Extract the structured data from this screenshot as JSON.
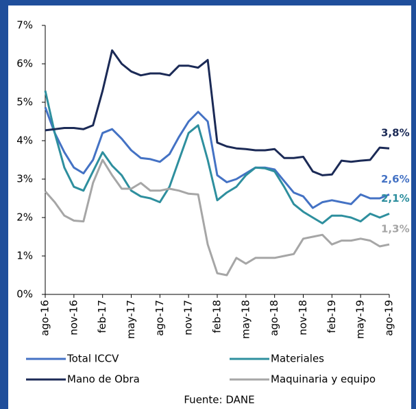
{
  "chart_data": {
    "type": "line",
    "categories": [
      "ago-16",
      null,
      null,
      "nov-16",
      null,
      null,
      "feb-17",
      null,
      null,
      "may-17",
      null,
      null,
      "ago-17",
      null,
      null,
      "nov-17",
      null,
      null,
      "feb-18",
      null,
      null,
      "may-18",
      null,
      null,
      "ago-18",
      null,
      null,
      "nov-18",
      null,
      null,
      "feb-19",
      null,
      null,
      "may-19",
      null,
      null,
      "ago-19"
    ],
    "ylim": [
      0,
      7
    ],
    "yticks": [
      {
        "value": 0,
        "label": "0%"
      },
      {
        "value": 1,
        "label": "1%"
      },
      {
        "value": 2,
        "label": "2%"
      },
      {
        "value": 3,
        "label": "3%"
      },
      {
        "value": 4,
        "label": "4%"
      },
      {
        "value": 5,
        "label": "5%"
      },
      {
        "value": 6,
        "label": "6%"
      },
      {
        "value": 7,
        "label": "7%"
      }
    ],
    "grid": false,
    "series": [
      {
        "name": "Total ICCV",
        "color": "#4472c4",
        "values": [
          4.87,
          4.2,
          3.7,
          3.3,
          3.15,
          3.5,
          4.2,
          4.3,
          4.05,
          3.75,
          3.55,
          3.52,
          3.45,
          3.65,
          4.1,
          4.5,
          4.75,
          4.5,
          3.1,
          2.92,
          3.0,
          3.15,
          3.3,
          3.3,
          3.25,
          2.95,
          2.65,
          2.55,
          2.25,
          2.4,
          2.45,
          2.4,
          2.35,
          2.6,
          2.5,
          2.5,
          2.6
        ],
        "value_labels": [
          null,
          null,
          null,
          null,
          null,
          null,
          null,
          null,
          null,
          null,
          null,
          null,
          null,
          null,
          null,
          null,
          null,
          null,
          null,
          null,
          null,
          null,
          null,
          null,
          null,
          null,
          null,
          null,
          null,
          null,
          null,
          null,
          null,
          null,
          null,
          null,
          "2,6%"
        ]
      },
      {
        "name": "Materiales",
        "color": "#2e8f9e",
        "values": [
          5.3,
          4.2,
          3.3,
          2.8,
          2.7,
          3.2,
          3.7,
          3.35,
          3.1,
          2.7,
          2.55,
          2.5,
          2.4,
          2.8,
          3.5,
          4.2,
          4.4,
          3.5,
          2.45,
          2.65,
          2.8,
          3.1,
          3.3,
          3.28,
          3.2,
          2.8,
          2.35,
          2.15,
          2.0,
          1.85,
          2.05,
          2.05,
          2.0,
          1.9,
          2.1,
          2.0,
          2.1
        ],
        "value_labels": [
          null,
          null,
          null,
          null,
          null,
          null,
          null,
          null,
          null,
          null,
          null,
          null,
          null,
          null,
          null,
          null,
          null,
          null,
          null,
          null,
          null,
          null,
          null,
          null,
          null,
          null,
          null,
          null,
          null,
          null,
          null,
          null,
          null,
          null,
          null,
          null,
          "2,1%"
        ]
      },
      {
        "name": "Mano de Obra",
        "color": "#1b2a56",
        "values": [
          4.27,
          4.3,
          4.33,
          4.33,
          4.3,
          4.4,
          5.3,
          6.35,
          6.0,
          5.8,
          5.7,
          5.75,
          5.75,
          5.7,
          5.95,
          5.95,
          5.9,
          6.1,
          3.95,
          3.85,
          3.8,
          3.78,
          3.75,
          3.75,
          3.78,
          3.55,
          3.55,
          3.58,
          3.2,
          3.1,
          3.12,
          3.48,
          3.45,
          3.48,
          3.5,
          3.82,
          3.8
        ],
        "value_labels": [
          null,
          null,
          null,
          null,
          null,
          null,
          null,
          null,
          null,
          null,
          null,
          null,
          null,
          null,
          null,
          null,
          null,
          null,
          null,
          null,
          null,
          null,
          null,
          null,
          null,
          null,
          null,
          null,
          null,
          null,
          null,
          null,
          null,
          null,
          null,
          null,
          "3,8%"
        ]
      },
      {
        "name": "Maquinaria y equipo",
        "color": "#a6a6a6",
        "values": [
          2.68,
          2.4,
          2.05,
          1.92,
          1.9,
          2.9,
          3.5,
          3.1,
          2.75,
          2.75,
          2.9,
          2.7,
          2.7,
          2.75,
          2.7,
          2.62,
          2.6,
          1.3,
          0.55,
          0.5,
          0.95,
          0.8,
          0.95,
          0.95,
          0.95,
          1.0,
          1.05,
          1.45,
          1.5,
          1.55,
          1.3,
          1.4,
          1.4,
          1.45,
          1.4,
          1.25,
          1.3
        ],
        "value_labels": [
          null,
          null,
          null,
          null,
          null,
          null,
          null,
          null,
          null,
          null,
          null,
          null,
          null,
          null,
          null,
          null,
          null,
          null,
          null,
          null,
          null,
          null,
          null,
          null,
          null,
          null,
          null,
          null,
          null,
          null,
          null,
          null,
          null,
          null,
          null,
          null,
          "1,3%"
        ]
      }
    ],
    "source": "Fuente: DANE"
  }
}
